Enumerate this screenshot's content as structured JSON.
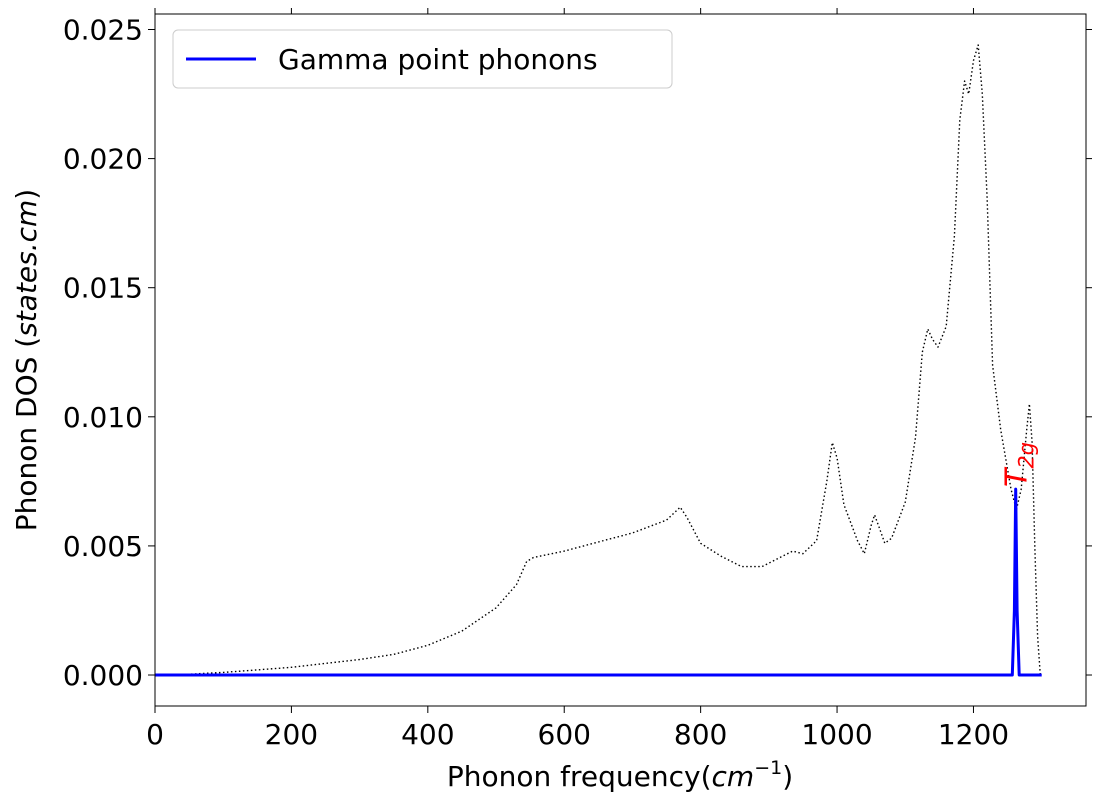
{
  "chart_data": {
    "type": "line",
    "xlabel": {
      "prefix": "Phonon frequency(",
      "var": "cm",
      "sup": "−1",
      "suffix": ")"
    },
    "ylabel": {
      "prefix": "Phonon DOS (",
      "var": "states.cm",
      "suffix": ")"
    },
    "xlim": [
      0,
      1365
    ],
    "ylim": [
      -0.0012,
      0.0256
    ],
    "xticks": [
      0,
      200,
      400,
      600,
      800,
      1000,
      1200
    ],
    "xtick_labels": [
      "0",
      "200",
      "400",
      "600",
      "800",
      "1000",
      "1200"
    ],
    "yticks": [
      0.0,
      0.005,
      0.01,
      0.015,
      0.02,
      0.025
    ],
    "ytick_labels": [
      "0.000",
      "0.005",
      "0.010",
      "0.015",
      "0.020",
      "0.025"
    ],
    "grid": false,
    "legend": {
      "position": "top-left",
      "entries": [
        {
          "label": "Gamma point phonons",
          "color": "#0000ff"
        }
      ]
    },
    "annotations": [
      {
        "base": "T",
        "sub": "2g",
        "x": 1262,
        "y": 0.0074,
        "rotation": -90,
        "color": "#ff0000"
      }
    ],
    "series": [
      {
        "name": "Gamma point phonons",
        "color": "#0000ff",
        "style": "solid",
        "points": [
          [
            0,
            0
          ],
          [
            1257,
            0
          ],
          [
            1260,
            0.0025
          ],
          [
            1262,
            0.0072
          ],
          [
            1264,
            0.0025
          ],
          [
            1267,
            0
          ],
          [
            1300,
            0
          ]
        ]
      },
      {
        "color": "#000000",
        "style": "dotted",
        "points": [
          [
            0,
            0
          ],
          [
            50,
            3e-05
          ],
          [
            100,
            0.0001
          ],
          [
            150,
            0.0002
          ],
          [
            200,
            0.0003
          ],
          [
            250,
            0.00045
          ],
          [
            300,
            0.0006
          ],
          [
            350,
            0.0008
          ],
          [
            400,
            0.00115
          ],
          [
            450,
            0.0017
          ],
          [
            500,
            0.0026
          ],
          [
            530,
            0.0035
          ],
          [
            545,
            0.0044
          ],
          [
            555,
            0.00455
          ],
          [
            600,
            0.0048
          ],
          [
            650,
            0.00515
          ],
          [
            700,
            0.0055
          ],
          [
            750,
            0.006
          ],
          [
            770,
            0.0065
          ],
          [
            780,
            0.0061
          ],
          [
            800,
            0.0051
          ],
          [
            830,
            0.0046
          ],
          [
            860,
            0.0042
          ],
          [
            890,
            0.0042
          ],
          [
            920,
            0.0046
          ],
          [
            935,
            0.0048
          ],
          [
            950,
            0.0047
          ],
          [
            970,
            0.0052
          ],
          [
            985,
            0.0075
          ],
          [
            993,
            0.009
          ],
          [
            1000,
            0.0084
          ],
          [
            1010,
            0.0066
          ],
          [
            1030,
            0.0052
          ],
          [
            1040,
            0.0047
          ],
          [
            1050,
            0.0058
          ],
          [
            1055,
            0.0062
          ],
          [
            1062,
            0.0057
          ],
          [
            1070,
            0.0051
          ],
          [
            1080,
            0.0053
          ],
          [
            1100,
            0.0067
          ],
          [
            1115,
            0.0092
          ],
          [
            1125,
            0.0125
          ],
          [
            1133,
            0.0134
          ],
          [
            1140,
            0.013
          ],
          [
            1148,
            0.0127
          ],
          [
            1160,
            0.0135
          ],
          [
            1172,
            0.017
          ],
          [
            1180,
            0.0215
          ],
          [
            1187,
            0.023
          ],
          [
            1193,
            0.0225
          ],
          [
            1200,
            0.0238
          ],
          [
            1207,
            0.0244
          ],
          [
            1213,
            0.0225
          ],
          [
            1220,
            0.0185
          ],
          [
            1228,
            0.012
          ],
          [
            1240,
            0.0095
          ],
          [
            1255,
            0.0072
          ],
          [
            1263,
            0.0064
          ],
          [
            1270,
            0.0072
          ],
          [
            1278,
            0.0095
          ],
          [
            1282,
            0.0105
          ],
          [
            1286,
            0.009
          ],
          [
            1290,
            0.005
          ],
          [
            1294,
            0.0015
          ],
          [
            1298,
            0
          ]
        ]
      }
    ]
  }
}
